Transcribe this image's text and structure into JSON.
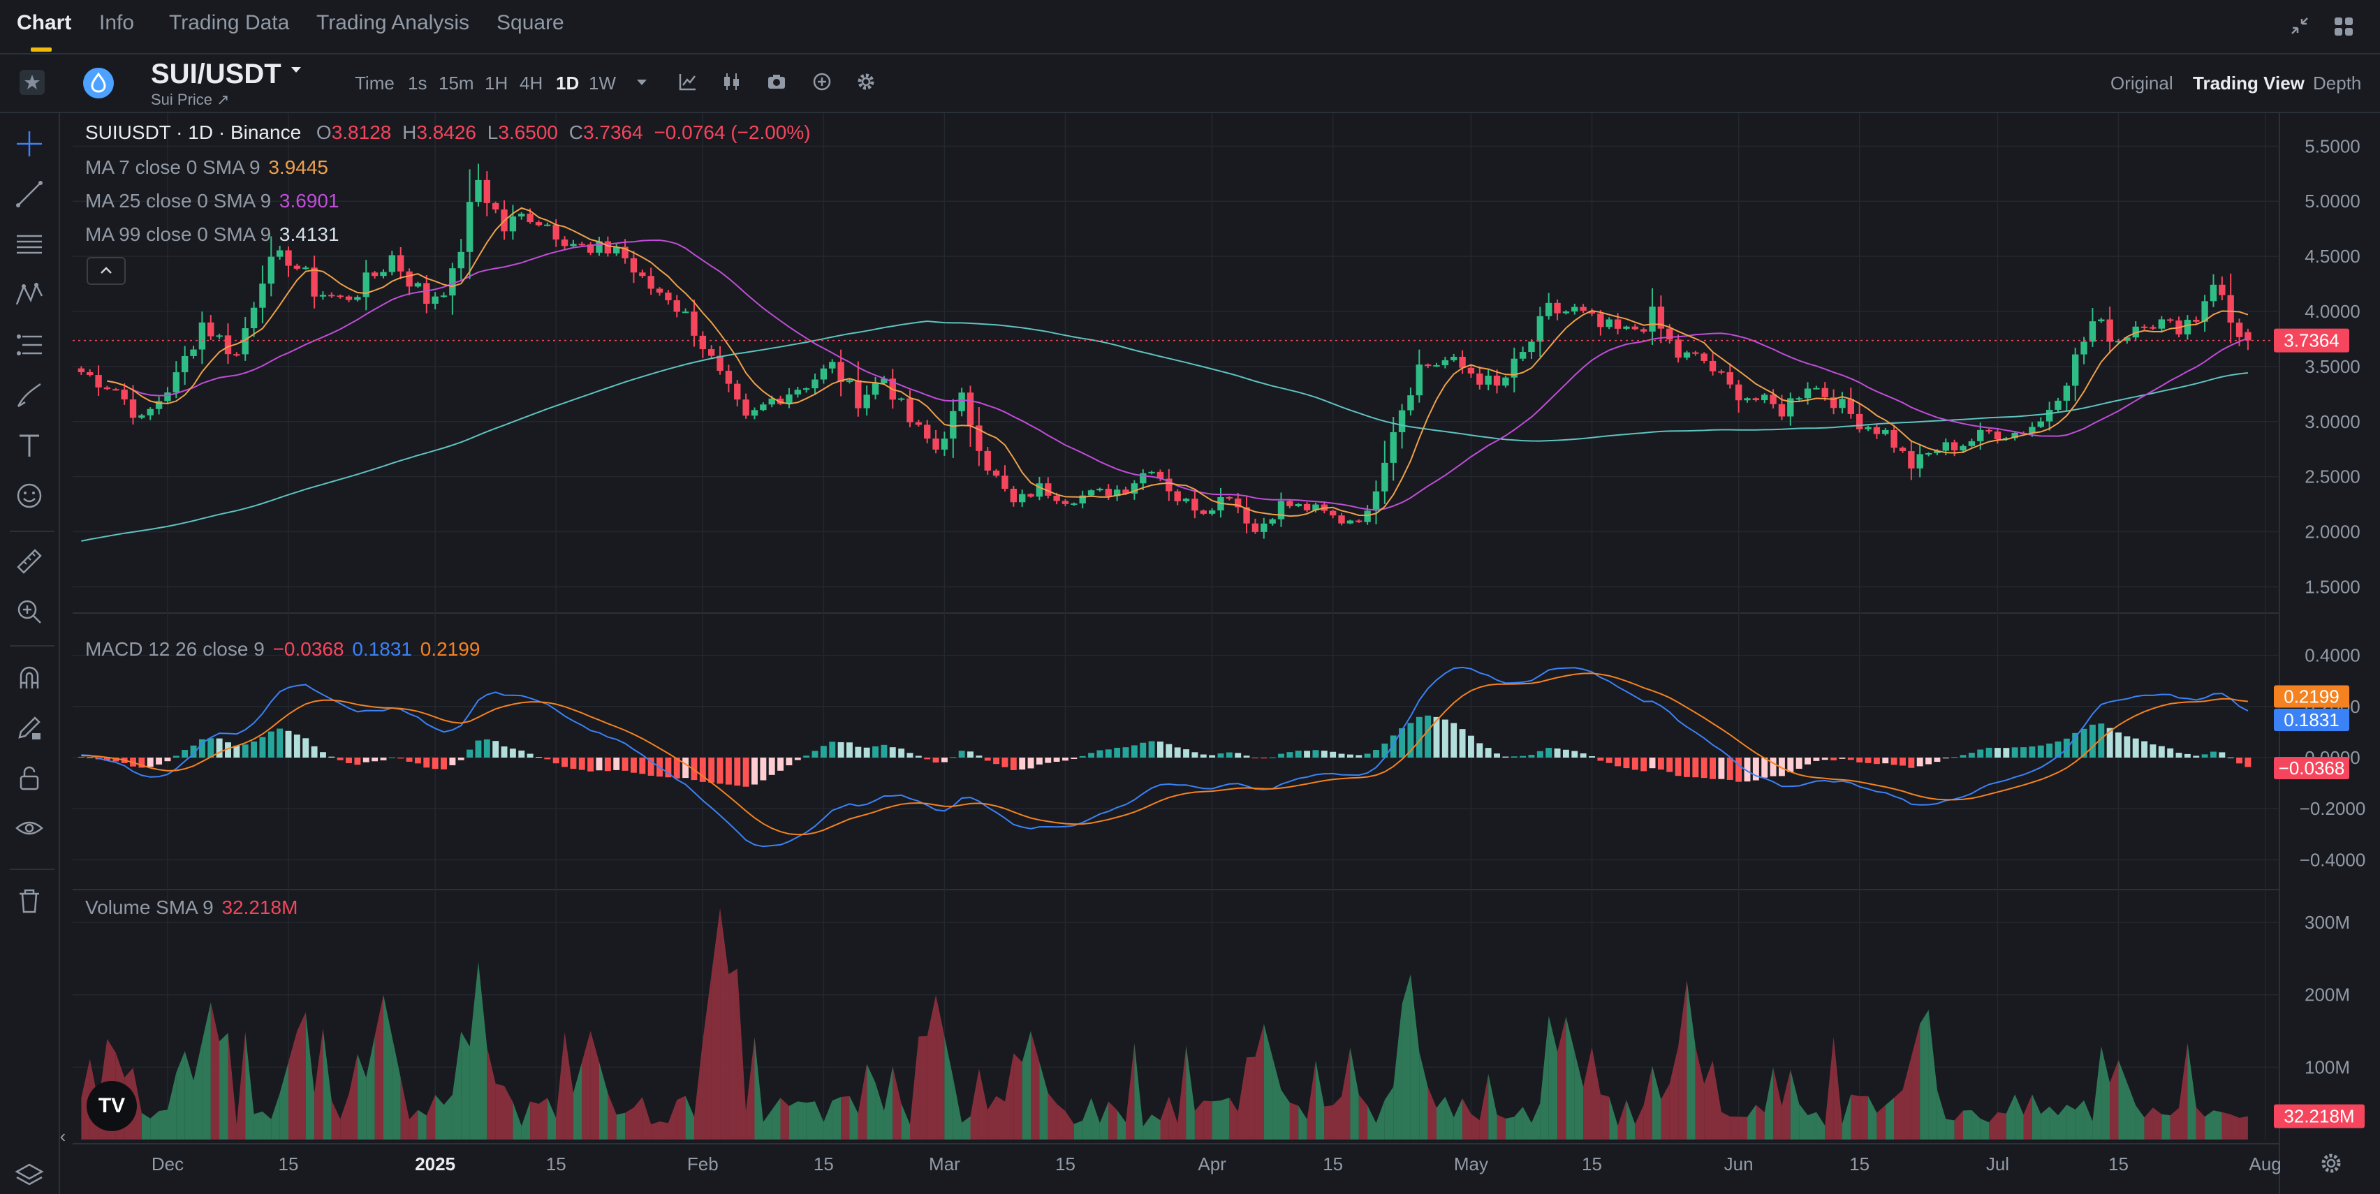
{
  "nav": {
    "tabs": [
      {
        "label": "Chart"
      },
      {
        "label": "Info"
      },
      {
        "label": "Trading Data"
      },
      {
        "label": "Trading Analysis"
      },
      {
        "label": "Square"
      }
    ]
  },
  "symbol": {
    "pair": "SUI/USDT",
    "subtitle": "Sui Price ↗"
  },
  "timeframes": [
    {
      "label": "Time"
    },
    {
      "label": "1s"
    },
    {
      "label": "15m"
    },
    {
      "label": "1H"
    },
    {
      "label": "4H"
    },
    {
      "label": "1D"
    },
    {
      "label": "1W"
    }
  ],
  "views": [
    {
      "label": "Original"
    },
    {
      "label": "Trading View"
    },
    {
      "label": "Depth"
    }
  ],
  "icons": {
    "toolbar": [
      "chevron-down-icon",
      "indicators-icon",
      "candle-type-icon",
      "camera-icon",
      "add-icon",
      "settings-icon"
    ],
    "left": [
      "crosshair-icon",
      "trend-line-icon",
      "horizontal-lines-icon",
      "pattern-icon",
      "fib-icon",
      "brush-icon",
      "text-icon",
      "emoji-icon",
      "ruler-icon",
      "zoom-in-icon",
      "magnet-icon",
      "lock-edit-icon",
      "lock-icon",
      "eye-icon",
      "trash-icon",
      "layers-icon"
    ]
  },
  "legend": {
    "title": "SUIUSDT · 1D · Binance",
    "o_label": "O",
    "o": "3.8128",
    "h_label": "H",
    "h": "3.8426",
    "l_label": "L",
    "l": "3.6500",
    "c_label": "C",
    "c": "3.7364",
    "change": "−0.0764 (−2.00%)",
    "ma7_label": "MA 7 close 0 SMA 9",
    "ma7": "3.9445",
    "ma25_label": "MA 25 close 0 SMA 9",
    "ma25": "3.6901",
    "ma99_label": "MA 99 close 0 SMA 9",
    "ma99": "3.4131",
    "macd_label": "MACD 12 26 close 9",
    "macd_hist": "−0.0368",
    "macd": "0.1831",
    "macd_signal": "0.2199",
    "vol_label": "Volume SMA 9",
    "vol": "32.218M"
  },
  "watermark": "TV",
  "colors": {
    "up": "#2ebd85",
    "down": "#f6465d",
    "ma7": "#f0a14a",
    "ma25": "#c14dd8",
    "ma99": "#5ec4c0",
    "macd": "#3b82f6",
    "signal": "#f58220",
    "accent": "#f0b90b",
    "background": "#181a20"
  },
  "chart_data": [
    {
      "type": "candlestick",
      "title": "SUIUSDT · 1D · Binance",
      "x": [
        "Dec",
        "15",
        "2025",
        "15",
        "Feb",
        "15",
        "Mar",
        "15",
        "Apr",
        "15",
        "May",
        "15",
        "Jun",
        "15",
        "Jul",
        "15",
        "Aug"
      ],
      "ylim": [
        1.3,
        5.8
      ],
      "yticks": [
        "5.5000",
        "5.0000",
        "4.5000",
        "4.0000",
        "3.5000",
        "3.0000",
        "2.5000",
        "2.0000",
        "1.5000"
      ],
      "last_price": "3.7364",
      "close_path": [
        [
          "2024-11-21",
          3.45
        ],
        [
          "2024-11-25",
          3.3
        ],
        [
          "2024-11-28",
          3.0
        ],
        [
          "2024-12-02",
          3.4
        ],
        [
          "2024-12-05",
          3.9
        ],
        [
          "2024-12-09",
          3.6
        ],
        [
          "2024-12-12",
          4.35
        ],
        [
          "2024-12-15",
          4.5
        ],
        [
          "2024-12-18",
          4.2
        ],
        [
          "2024-12-21",
          4.1
        ],
        [
          "2024-12-24",
          4.25
        ],
        [
          "2024-12-27",
          4.5
        ],
        [
          "2024-12-31",
          4.1
        ],
        [
          "2025-01-03",
          4.3
        ],
        [
          "2025-01-06",
          5.2
        ],
        [
          "2025-01-09",
          4.75
        ],
        [
          "2025-01-12",
          4.9
        ],
        [
          "2025-01-16",
          4.7
        ],
        [
          "2025-01-19",
          4.5
        ],
        [
          "2025-01-22",
          4.6
        ],
        [
          "2025-01-25",
          4.25
        ],
        [
          "2025-01-28",
          4.15
        ],
        [
          "2025-01-31",
          3.85
        ],
        [
          "2025-02-03",
          3.4
        ],
        [
          "2025-02-06",
          3.0
        ],
        [
          "2025-02-09",
          3.2
        ],
        [
          "2025-02-13",
          3.35
        ],
        [
          "2025-02-16",
          3.5
        ],
        [
          "2025-02-19",
          3.2
        ],
        [
          "2025-02-22",
          3.4
        ],
        [
          "2025-02-25",
          3.0
        ],
        [
          "2025-02-28",
          2.75
        ],
        [
          "2025-03-03",
          3.2
        ],
        [
          "2025-03-06",
          2.6
        ],
        [
          "2025-03-09",
          2.25
        ],
        [
          "2025-03-12",
          2.4
        ],
        [
          "2025-03-15",
          2.3
        ],
        [
          "2025-03-19",
          2.35
        ],
        [
          "2025-03-22",
          2.4
        ],
        [
          "2025-03-25",
          2.6
        ],
        [
          "2025-03-28",
          2.3
        ],
        [
          "2025-03-31",
          2.2
        ],
        [
          "2025-04-03",
          2.35
        ],
        [
          "2025-04-06",
          2.0
        ],
        [
          "2025-04-09",
          2.25
        ],
        [
          "2025-04-13",
          2.2
        ],
        [
          "2025-04-16",
          2.1
        ],
        [
          "2025-04-19",
          2.15
        ],
        [
          "2025-04-22",
          2.95
        ],
        [
          "2025-04-25",
          3.5
        ],
        [
          "2025-04-28",
          3.55
        ],
        [
          "2025-05-01",
          3.45
        ],
        [
          "2025-05-04",
          3.3
        ],
        [
          "2025-05-07",
          3.6
        ],
        [
          "2025-05-10",
          4.0
        ],
        [
          "2025-05-13",
          4.0
        ],
        [
          "2025-05-16",
          3.85
        ],
        [
          "2025-05-19",
          3.8
        ],
        [
          "2025-05-22",
          3.95
        ],
        [
          "2025-05-25",
          3.6
        ],
        [
          "2025-05-28",
          3.55
        ],
        [
          "2025-05-31",
          3.3
        ],
        [
          "2025-06-03",
          3.2
        ],
        [
          "2025-06-06",
          3.1
        ],
        [
          "2025-06-09",
          3.35
        ],
        [
          "2025-06-12",
          3.2
        ],
        [
          "2025-06-15",
          3.0
        ],
        [
          "2025-06-18",
          2.9
        ],
        [
          "2025-06-21",
          2.6
        ],
        [
          "2025-06-24",
          2.75
        ],
        [
          "2025-06-27",
          2.8
        ],
        [
          "2025-06-30",
          2.9
        ],
        [
          "2025-07-03",
          2.9
        ],
        [
          "2025-07-06",
          3.0
        ],
        [
          "2025-07-09",
          3.4
        ],
        [
          "2025-07-12",
          3.9
        ],
        [
          "2025-07-15",
          3.75
        ],
        [
          "2025-07-18",
          3.95
        ],
        [
          "2025-07-21",
          3.85
        ],
        [
          "2025-07-24",
          3.95
        ],
        [
          "2025-07-26",
          4.3
        ],
        [
          "2025-07-28",
          3.9
        ],
        [
          "2025-07-30",
          3.7364
        ]
      ],
      "moving_averages": [
        {
          "name": "MA 7",
          "last": 3.9445
        },
        {
          "name": "MA 25",
          "last": 3.6901
        },
        {
          "name": "MA 99",
          "last": 3.4131
        }
      ]
    },
    {
      "type": "line+bar",
      "title": "MACD 12 26 close 9",
      "ylim": [
        -0.5,
        0.5
      ],
      "yticks": [
        "0.4000",
        "0.2000",
        "0.0000",
        "−0.2000",
        "−0.4000"
      ],
      "series": [
        {
          "name": "MACD",
          "last": 0.1831
        },
        {
          "name": "Signal",
          "last": 0.2199
        },
        {
          "name": "Histogram",
          "last": -0.0368
        }
      ]
    },
    {
      "type": "area",
      "title": "Volume SMA 9",
      "ylim": [
        0,
        330
      ],
      "yticks": [
        "300M",
        "200M",
        "100M"
      ],
      "last": "32.218M",
      "peaks_millions": [
        [
          "2024-11-25",
          120
        ],
        [
          "2024-12-06",
          190
        ],
        [
          "2024-12-16",
          150
        ],
        [
          "2024-12-26",
          200
        ],
        [
          "2025-01-06",
          180
        ],
        [
          "2025-01-19",
          150
        ],
        [
          "2025-02-03",
          320
        ],
        [
          "2025-02-28",
          200
        ],
        [
          "2025-03-11",
          150
        ],
        [
          "2025-04-07",
          160
        ],
        [
          "2025-04-24",
          170
        ],
        [
          "2025-05-12",
          170
        ],
        [
          "2025-05-26",
          180
        ],
        [
          "2025-06-22",
          160
        ],
        [
          "2025-07-15",
          110
        ]
      ]
    }
  ]
}
